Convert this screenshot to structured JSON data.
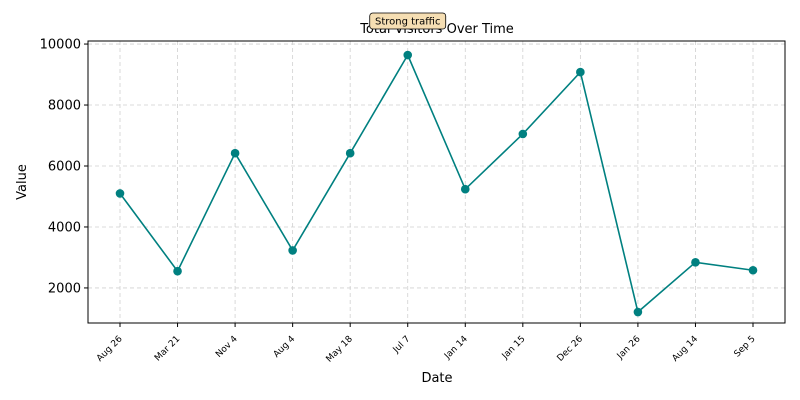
{
  "chart_data": {
    "type": "line",
    "title": "Total Visitors Over Time",
    "xlabel": "Date",
    "ylabel": "Value",
    "categories": [
      "Aug 26",
      "Mar 21",
      "Nov 4",
      "Aug 4",
      "May 18",
      "Jul 7",
      "Jan 14",
      "Jan 15",
      "Dec 26",
      "Jan 26",
      "Aug 14",
      "Sep 5"
    ],
    "series": [
      {
        "values": [
          5100,
          2550,
          6420,
          3230,
          6420,
          9640,
          5240,
          7050,
          9080,
          1210,
          2840,
          2580
        ]
      }
    ],
    "y_ticks": [
      2000,
      4000,
      6000,
      8000,
      10000
    ],
    "ylim": [
      850,
      10100
    ],
    "grid": true,
    "line_color": "#008080",
    "annotation": {
      "text": "Strong traffic",
      "category": "Jul 7",
      "box_color": "#f5deb3"
    }
  }
}
